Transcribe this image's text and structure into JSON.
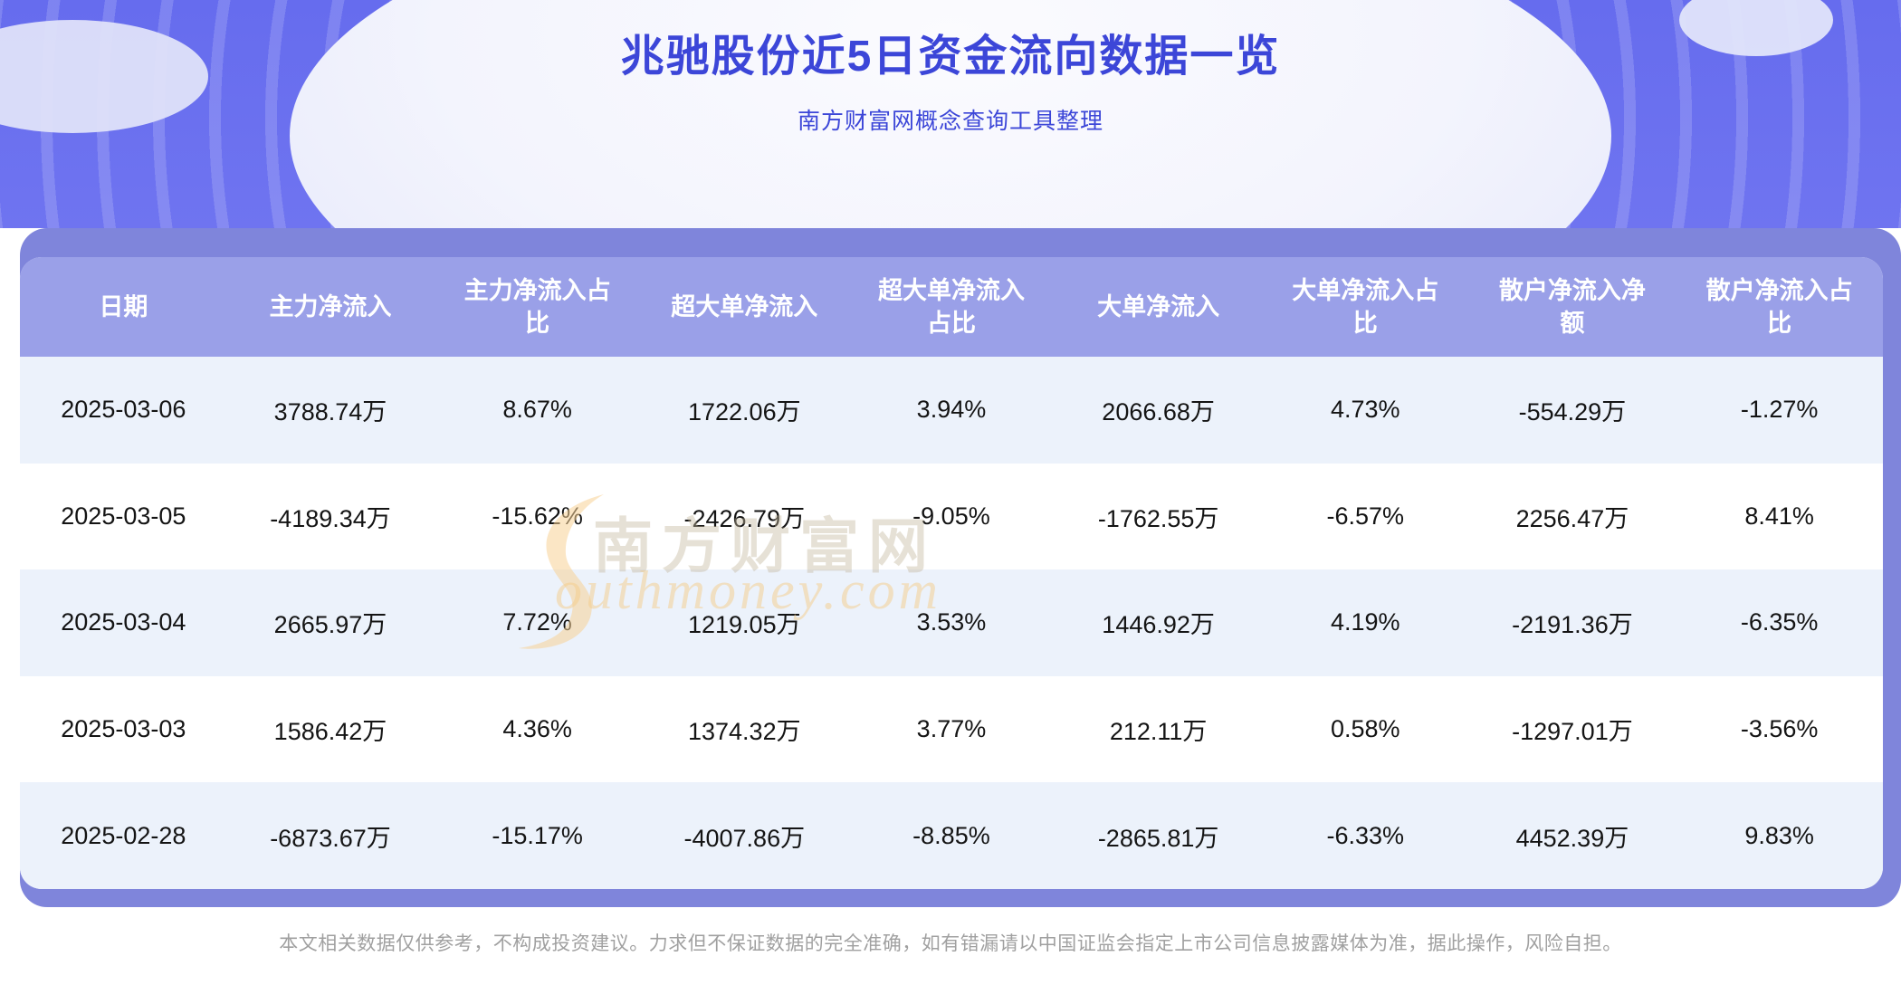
{
  "page": {
    "title": "兆驰股份近5日资金流向数据一览",
    "subtitle": "南方财富网概念查询工具整理",
    "disclaimer": "本文相关数据仅供参考，不构成投资建议。力求但不保证数据的完全准确，如有错漏请以中国证监会指定上市公司信息披露媒体为准，据此操作，风险自担。"
  },
  "watermark": {
    "brand": "南方财富网",
    "domain_script": "outhmoney.com"
  },
  "colors": {
    "hero_purple": "#6a70ee",
    "title_blue": "#3c46d8",
    "backing_purple": "#7f85db",
    "header_purple": "#9aa0e8",
    "stripe_blue": "#ecf2fb",
    "watermark_orange": "#f3cb8a"
  },
  "chart_data": {
    "type": "table",
    "title": "兆驰股份近5日资金流向数据一览",
    "columns": [
      "日期",
      "主力净流入",
      "主力净流入占比",
      "超大单净流入",
      "超大单净流入占比",
      "大单净流入",
      "大单净流入占比",
      "散户净流入净额",
      "散户净流入占比"
    ],
    "rows": [
      [
        "2025-03-06",
        "3788.74万",
        "8.67%",
        "1722.06万",
        "3.94%",
        "2066.68万",
        "4.73%",
        "-554.29万",
        "-1.27%"
      ],
      [
        "2025-03-05",
        "-4189.34万",
        "-15.62%",
        "-2426.79万",
        "-9.05%",
        "-1762.55万",
        "-6.57%",
        "2256.47万",
        "8.41%"
      ],
      [
        "2025-03-04",
        "2665.97万",
        "7.72%",
        "1219.05万",
        "3.53%",
        "1446.92万",
        "4.19%",
        "-2191.36万",
        "-6.35%"
      ],
      [
        "2025-03-03",
        "1586.42万",
        "4.36%",
        "1374.32万",
        "3.77%",
        "212.11万",
        "0.58%",
        "-1297.01万",
        "-3.56%"
      ],
      [
        "2025-02-28",
        "-6873.67万",
        "-15.17%",
        "-4007.86万",
        "-8.85%",
        "-2865.81万",
        "-6.33%",
        "4452.39万",
        "9.83%"
      ]
    ]
  }
}
